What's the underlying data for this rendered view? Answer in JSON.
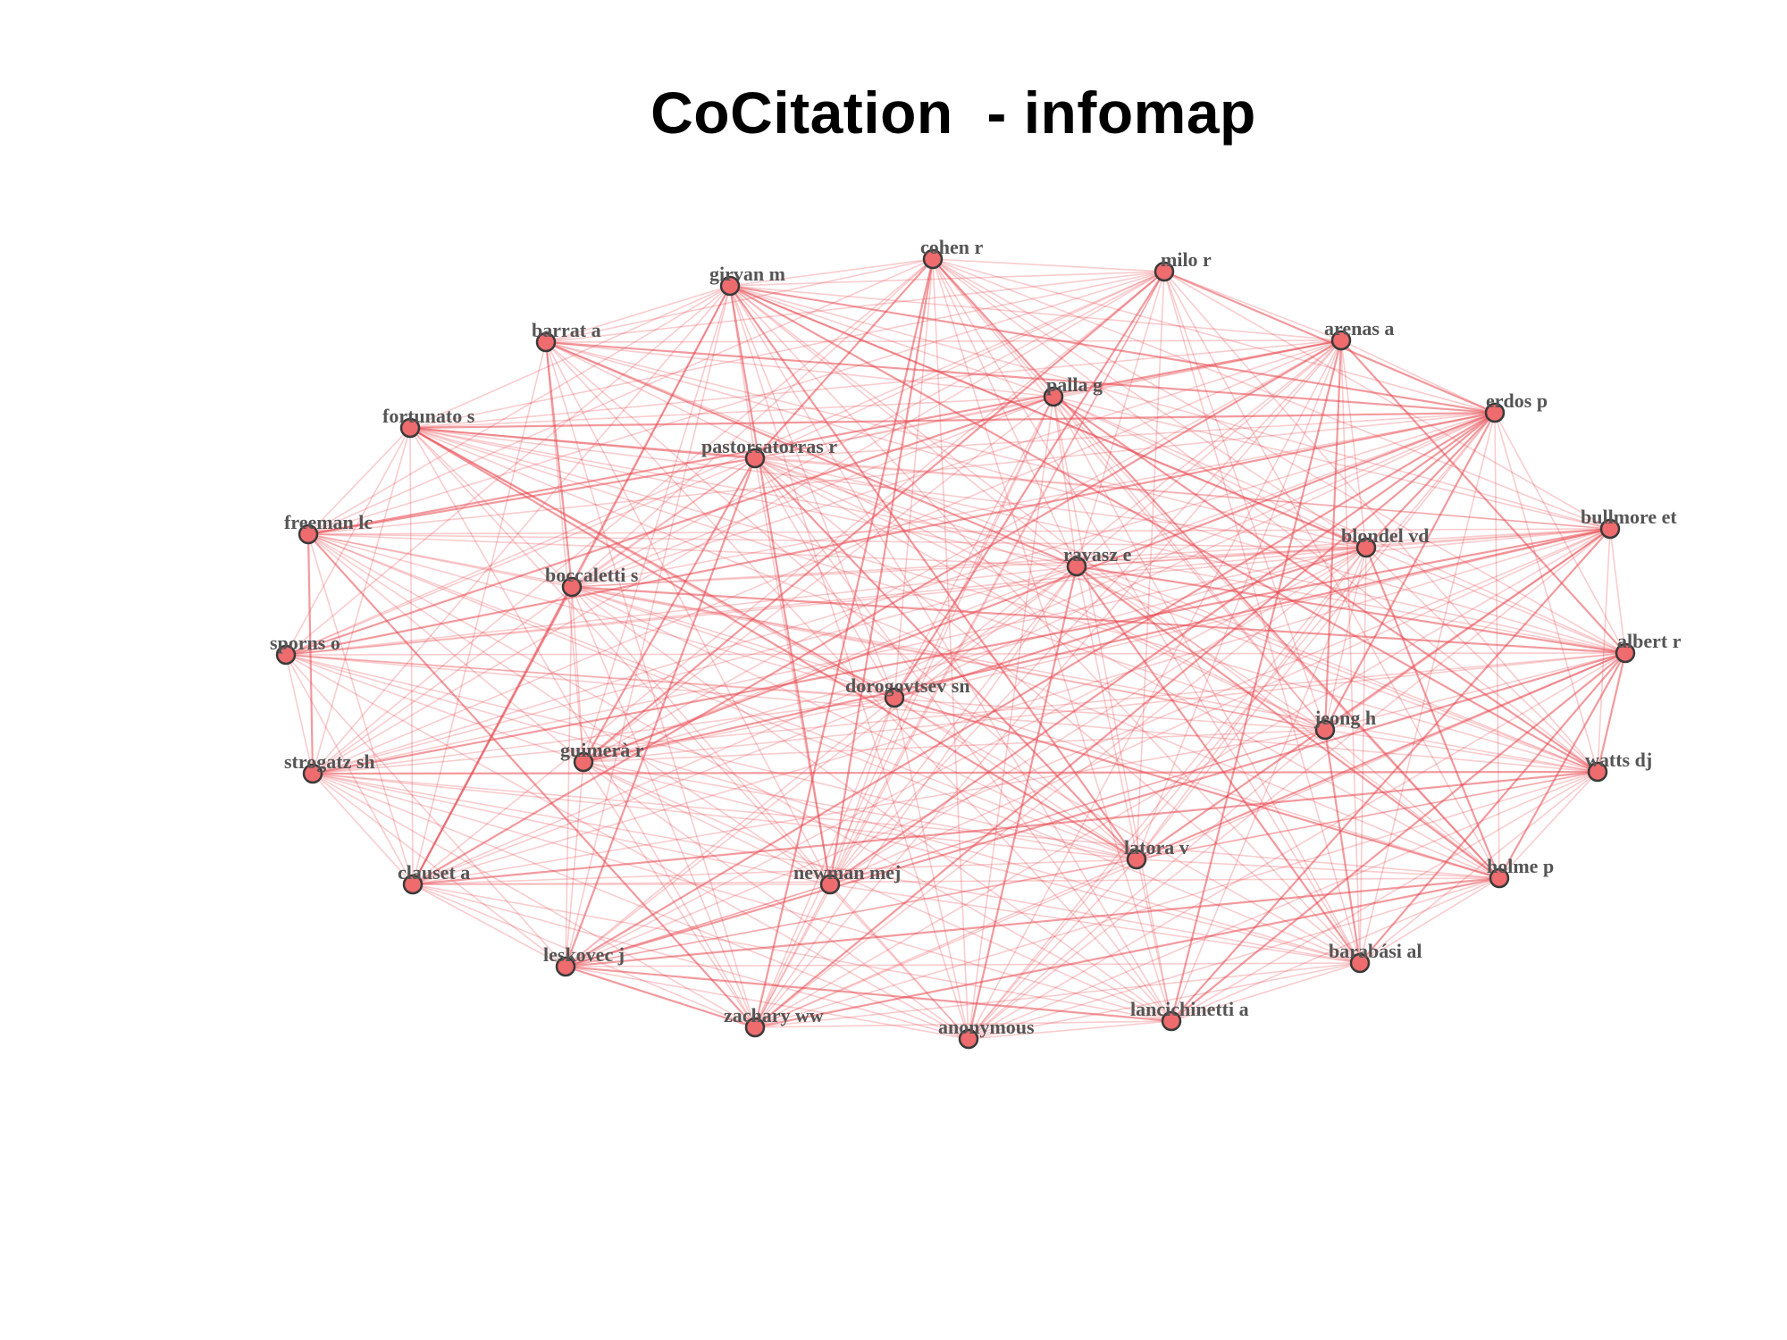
{
  "title": "CoCitation  - infomap",
  "colors": {
    "edge": "#e8474f",
    "node_fill": "#ee6b6e",
    "node_stroke": "#3a3a3a",
    "label": "#555555"
  },
  "nodes": [
    {
      "id": "cohen r",
      "label": "cohen r"
    },
    {
      "id": "milo r",
      "label": "milo r"
    },
    {
      "id": "girvan m",
      "label": "girvan m"
    },
    {
      "id": "arenas a",
      "label": "arenas a"
    },
    {
      "id": "barrat a",
      "label": "barrat a"
    },
    {
      "id": "palla g",
      "label": "palla g"
    },
    {
      "id": "erdos p",
      "label": "erdos p"
    },
    {
      "id": "fortunato s",
      "label": "fortunato s"
    },
    {
      "id": "pastorsatorras r",
      "label": "pastorsatorras r"
    },
    {
      "id": "freeman lc",
      "label": "freeman lc"
    },
    {
      "id": "bullmore et",
      "label": "bullmore et"
    },
    {
      "id": "blondel vd",
      "label": "blondel vd"
    },
    {
      "id": "ravasz e",
      "label": "ravasz e"
    },
    {
      "id": "boccaletti s",
      "label": "boccaletti s"
    },
    {
      "id": "sporns o",
      "label": "sporns o"
    },
    {
      "id": "albert r",
      "label": "albert r"
    },
    {
      "id": "dorogovtsev sn",
      "label": "dorogovtsev sn"
    },
    {
      "id": "jeong h",
      "label": "jeong h"
    },
    {
      "id": "guimerà r",
      "label": "guimerà r"
    },
    {
      "id": "strogatz sh",
      "label": "strogatz sh"
    },
    {
      "id": "watts dj",
      "label": "watts dj"
    },
    {
      "id": "latora v",
      "label": "latora v"
    },
    {
      "id": "clauset a",
      "label": "clauset a"
    },
    {
      "id": "newman mej",
      "label": "newman mej"
    },
    {
      "id": "holme p",
      "label": "holme p"
    },
    {
      "id": "leskovec j",
      "label": "leskovec j"
    },
    {
      "id": "barabási al",
      "label": "barabási al"
    },
    {
      "id": "zachary ww",
      "label": "zachary ww"
    },
    {
      "id": "anonymous",
      "label": "anonymous"
    },
    {
      "id": "lancichinetti a",
      "label": "lancichinetti a"
    }
  ]
}
